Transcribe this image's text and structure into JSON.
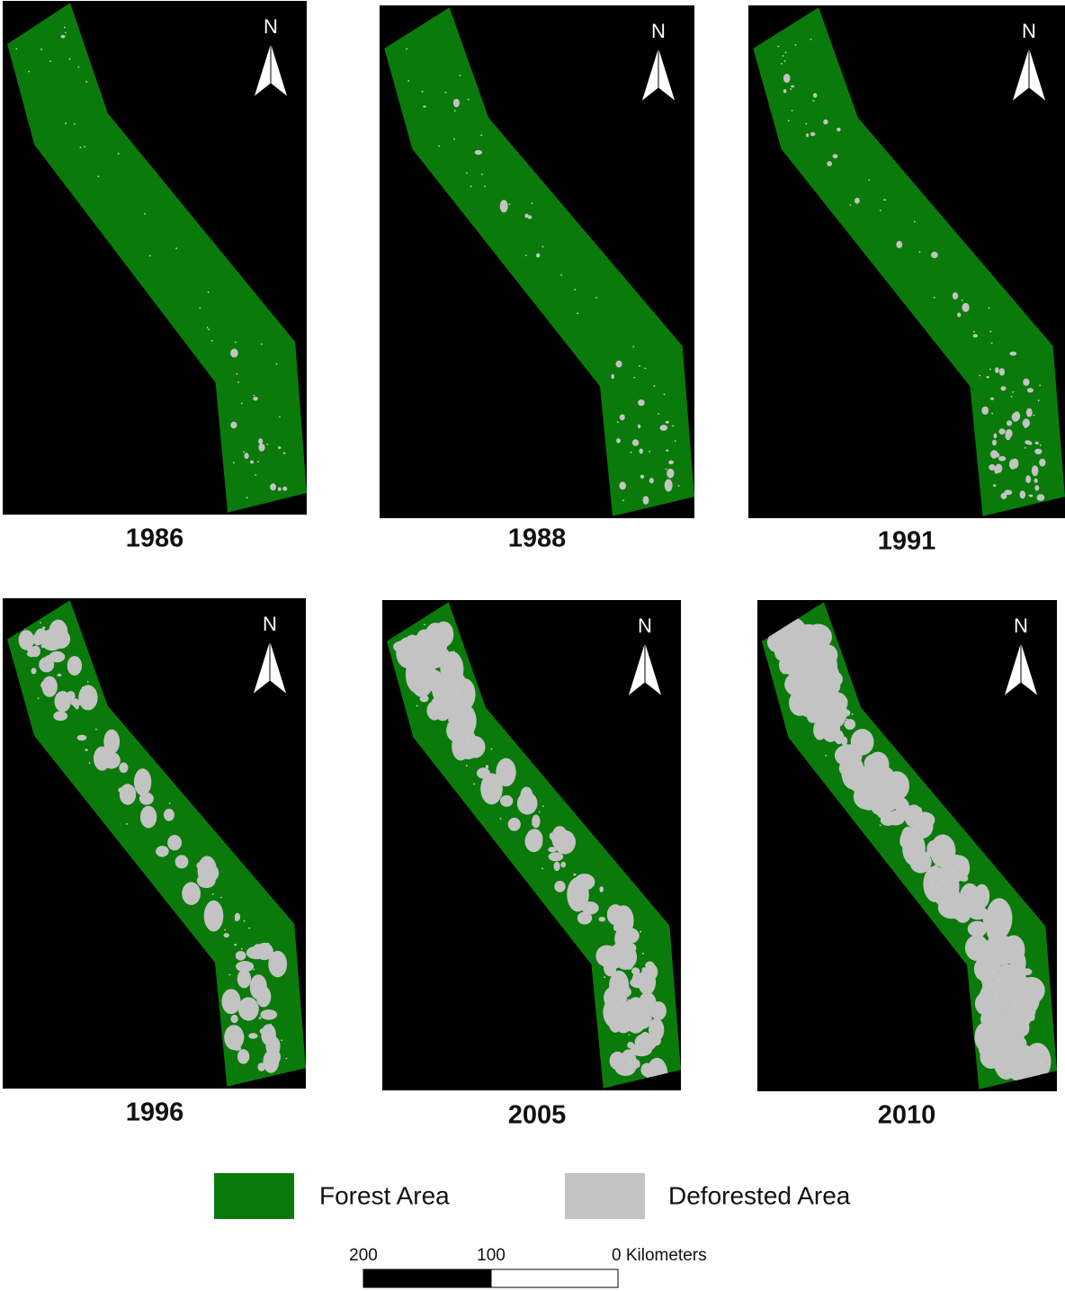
{
  "panels": [
    {
      "label": "1986",
      "north": "N"
    },
    {
      "label": "1988",
      "north": "N"
    },
    {
      "label": "1991",
      "north": "N"
    },
    {
      "label": "1996",
      "north": "N"
    },
    {
      "label": "2005",
      "north": "N"
    },
    {
      "label": "2010",
      "north": "N"
    }
  ],
  "legend": [
    {
      "label": "Forest Area"
    },
    {
      "label": "Deforested Area"
    }
  ],
  "scale_bar": {
    "labels": [
      "200",
      "100",
      "0 Kilometers"
    ]
  }
}
